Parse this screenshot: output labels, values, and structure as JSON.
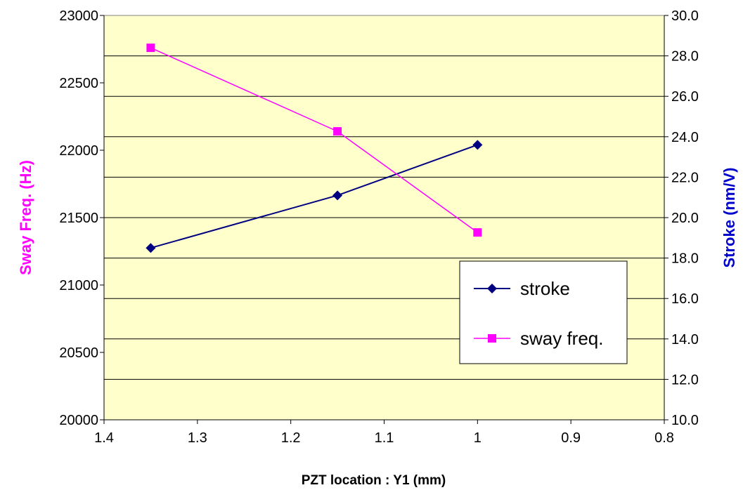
{
  "chart_data": {
    "type": "line",
    "xlabel": "PZT location : Y1 (mm)",
    "ylabel_left": "Sway Freq. (Hz)",
    "ylabel_right": "Stroke (nm/V)",
    "xlim": [
      1.4,
      0.8
    ],
    "x_reversed": true,
    "x_ticks": [
      "1.4",
      "1.3",
      "1.2",
      "1.1",
      "1",
      "0.9",
      "0.8"
    ],
    "x_tick_values": [
      1.4,
      1.3,
      1.2,
      1.1,
      1.0,
      0.9,
      0.8
    ],
    "ylim_left": [
      20000,
      23000
    ],
    "y_ticks_left": [
      "20000",
      "20500",
      "21000",
      "21500",
      "22000",
      "22500",
      "23000"
    ],
    "y_tick_values_left": [
      20000,
      20500,
      21000,
      21500,
      22000,
      22500,
      23000
    ],
    "ylim_right": [
      10.0,
      30.0
    ],
    "y_ticks_right": [
      "10.0",
      "12.0",
      "14.0",
      "16.0",
      "18.0",
      "20.0",
      "22.0",
      "24.0",
      "26.0",
      "28.0",
      "30.0"
    ],
    "y_tick_values_right": [
      10,
      12,
      14,
      16,
      18,
      20,
      22,
      24,
      26,
      28,
      30
    ],
    "grid": "horizontal",
    "plot_background": "#ffffcc",
    "legend_position": "lower-right",
    "series": [
      {
        "name": "stroke",
        "axis": "right",
        "color": "#000080",
        "marker": "diamond",
        "x": [
          1.35,
          1.15,
          1.0
        ],
        "y": [
          18.5,
          21.1,
          23.6
        ]
      },
      {
        "name": "sway freq.",
        "axis": "left",
        "color": "#ff00ff",
        "marker": "square",
        "x": [
          1.35,
          1.15,
          1.0
        ],
        "y": [
          22760,
          22140,
          21390
        ]
      }
    ],
    "colors": {
      "left_axis_title": "#ff00ff",
      "right_axis_title": "#0000cc",
      "gridline": "#000000"
    }
  }
}
